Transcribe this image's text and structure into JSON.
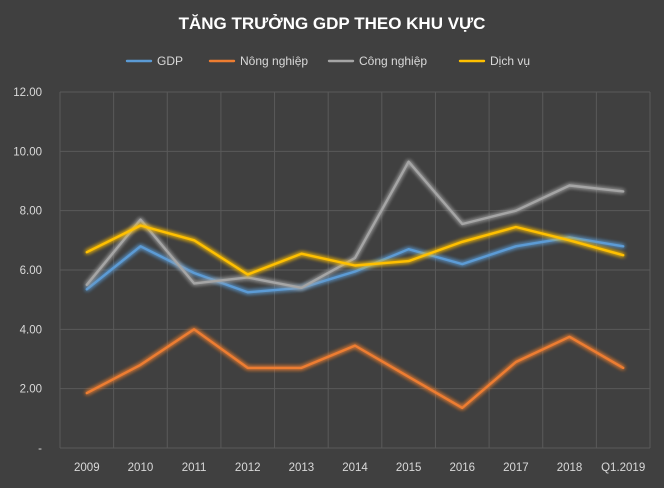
{
  "chart_data": {
    "type": "line",
    "title": "TĂNG TRƯỞNG GDP THEO KHU VỰC",
    "categories": [
      "2009",
      "2010",
      "2011",
      "2012",
      "2013",
      "2014",
      "2015",
      "2016",
      "2017",
      "2018",
      "Q1.2019"
    ],
    "y_ticks": [
      "-",
      "2.00",
      "4.00",
      "6.00",
      "8.00",
      "10.00",
      "12.00"
    ],
    "ylim": [
      0,
      12
    ],
    "grid": true,
    "legend_position": "top",
    "series": [
      {
        "name": "GDP",
        "color": "#5b9bd5",
        "values": [
          5.35,
          6.8,
          5.9,
          5.25,
          5.4,
          5.95,
          6.7,
          6.2,
          6.8,
          7.1,
          6.8
        ]
      },
      {
        "name": "Nông nghiệp",
        "color": "#ed7d31",
        "values": [
          1.85,
          2.8,
          4.0,
          2.7,
          2.7,
          3.45,
          2.4,
          1.35,
          2.9,
          3.75,
          2.7
        ]
      },
      {
        "name": "Công nghiệp",
        "color": "#a5a5a5",
        "values": [
          5.5,
          7.7,
          5.55,
          5.75,
          5.4,
          6.4,
          9.65,
          7.55,
          8.0,
          8.85,
          8.65
        ]
      },
      {
        "name": "Dịch vụ",
        "color": "#ffc000",
        "values": [
          6.6,
          7.5,
          7.0,
          5.85,
          6.55,
          6.15,
          6.3,
          6.95,
          7.45,
          7.0,
          6.5
        ]
      }
    ]
  }
}
